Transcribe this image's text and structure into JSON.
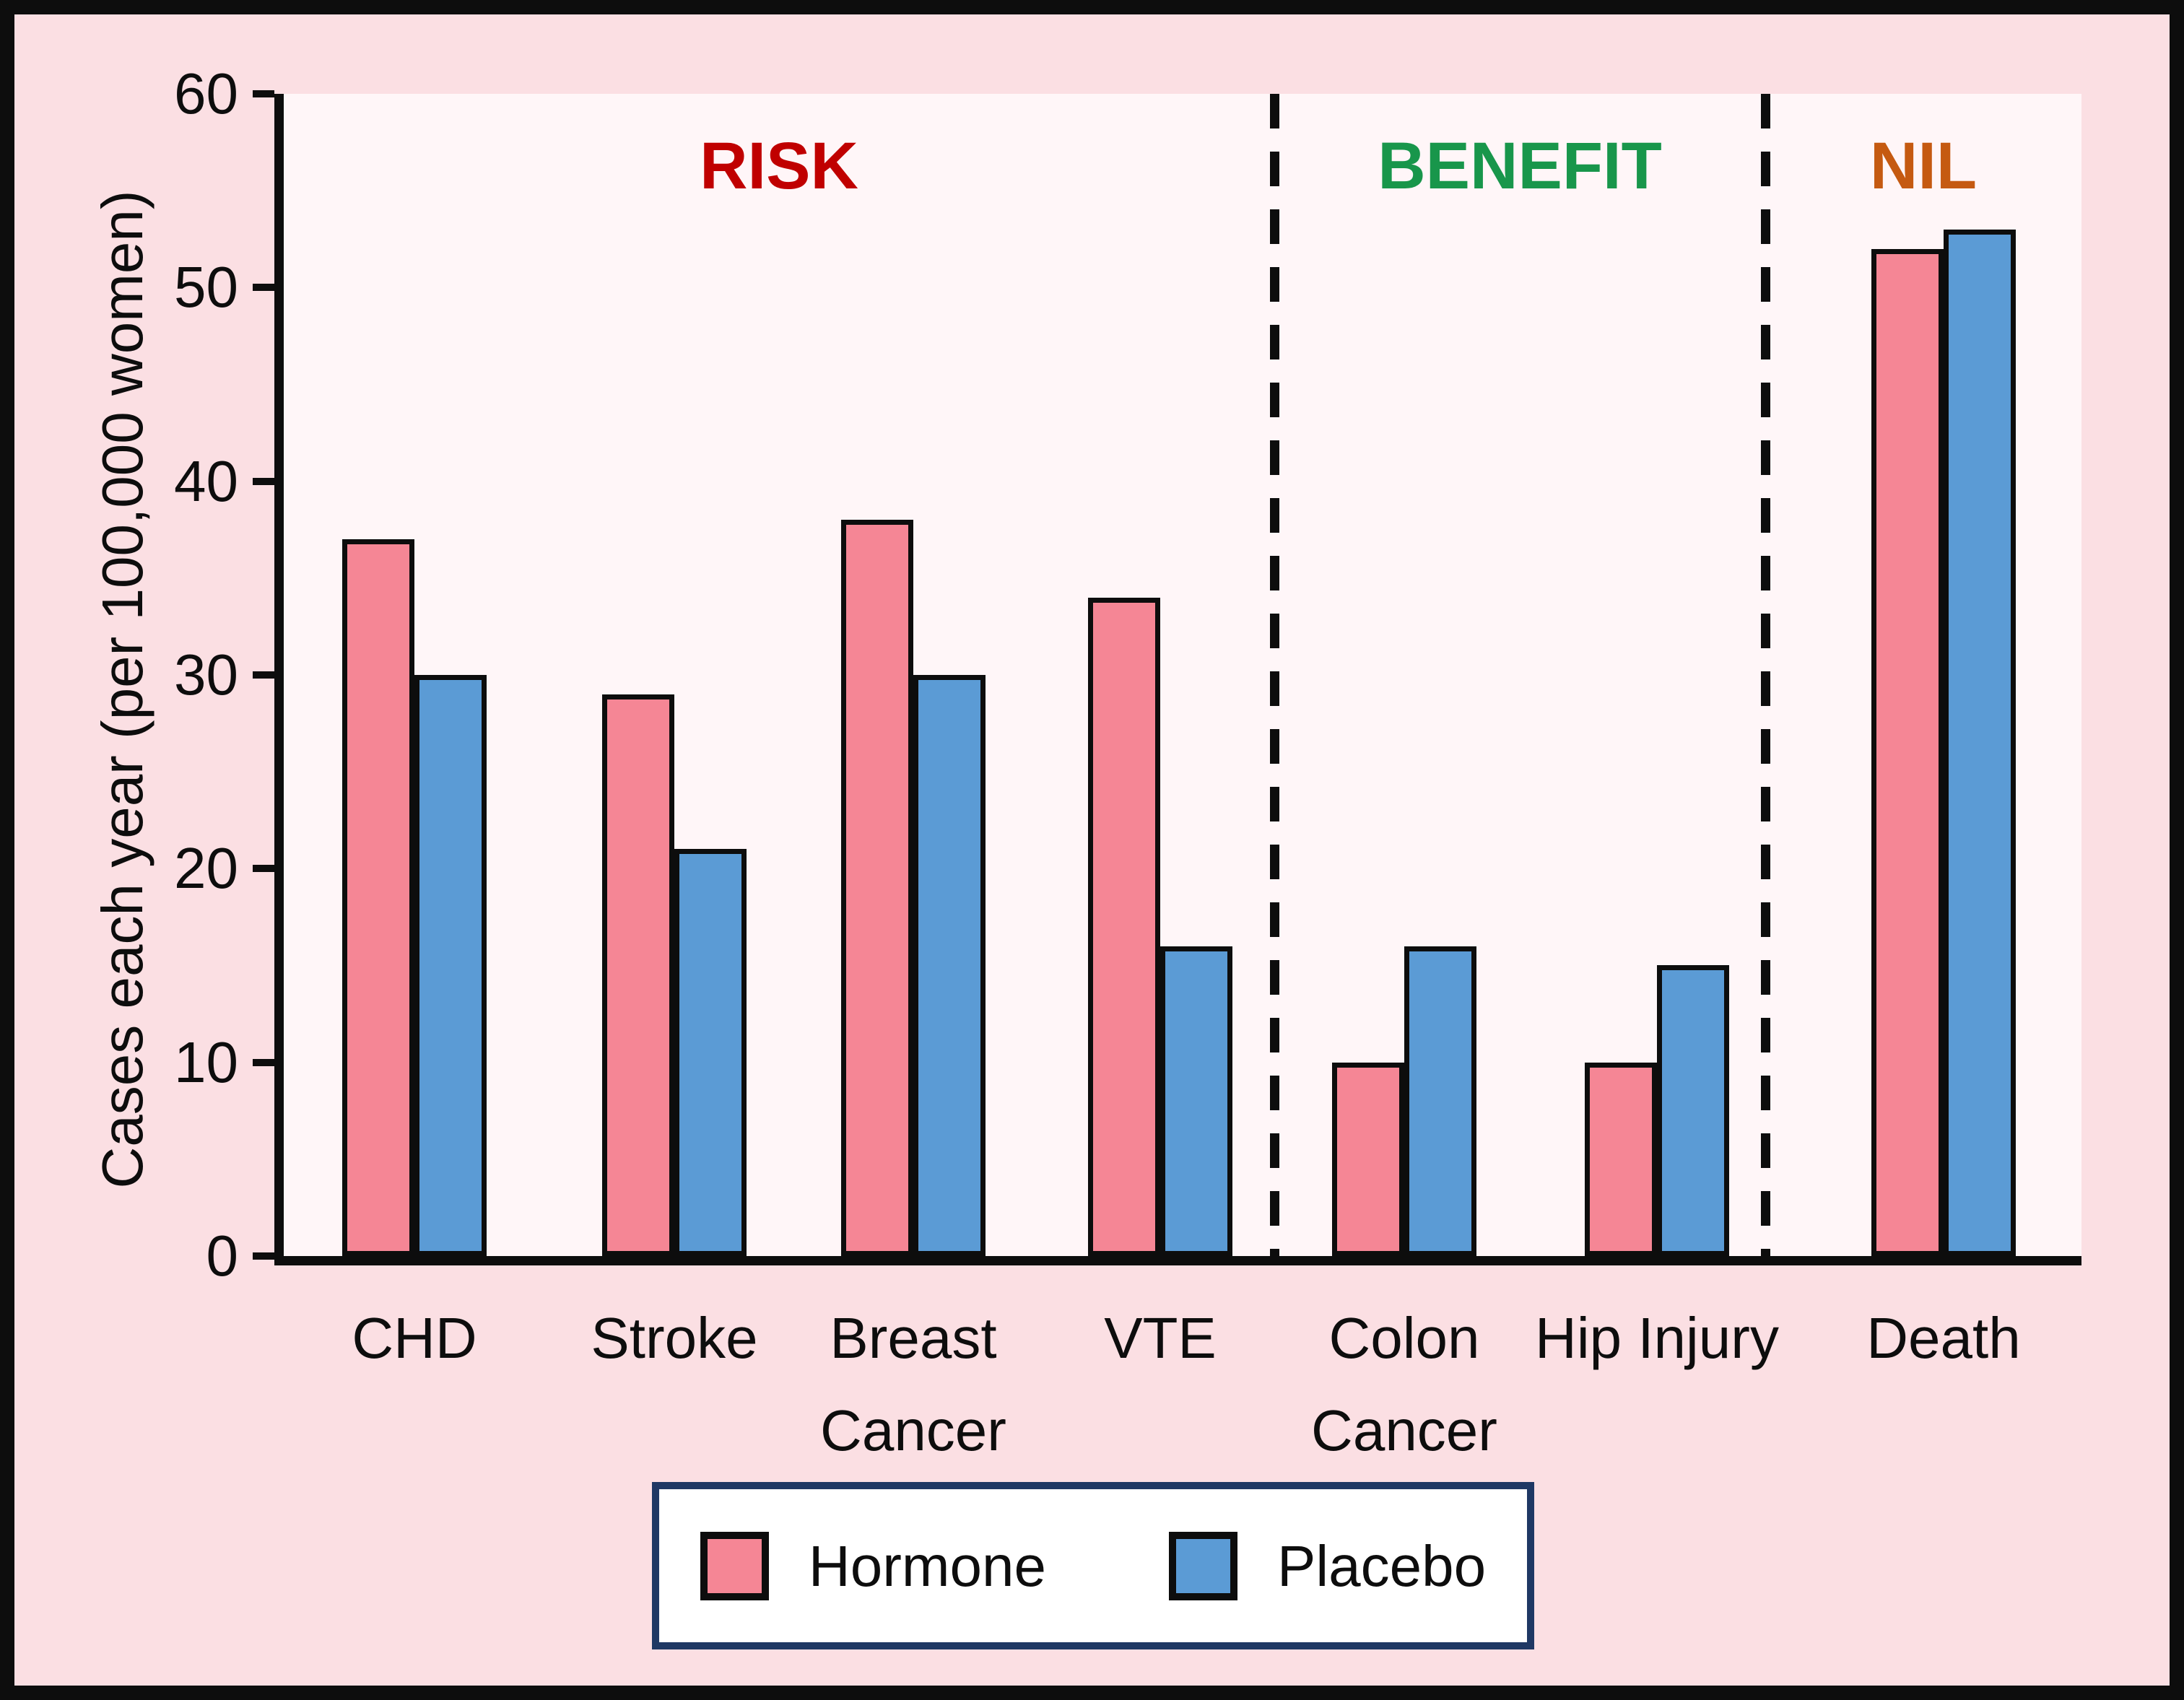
{
  "figure": {
    "background_color": "#fbdfe3",
    "plot_background_color": "#fff6f8",
    "frame_color": "#0d0d0d",
    "axis_color": "#0d0d0d"
  },
  "chart_data": {
    "type": "bar",
    "title": "",
    "ylabel": "Cases each year (per 100,000 women)",
    "xlabel": "",
    "ylim": [
      0,
      60
    ],
    "yticks": [
      0,
      10,
      20,
      30,
      40,
      50,
      60
    ],
    "grid": false,
    "legend_position": "bottom",
    "categories": [
      "CHD",
      "Stroke",
      "Breast Cancer",
      "VTE",
      "Colon Cancer",
      "Hip Injury",
      "Death"
    ],
    "series": [
      {
        "name": "Hormone",
        "color": "#f58695",
        "values": [
          37,
          29,
          38,
          34,
          10,
          10,
          52
        ]
      },
      {
        "name": "Placebo",
        "color": "#5b9bd5",
        "values": [
          30,
          21,
          30,
          16,
          16,
          15,
          53
        ]
      }
    ],
    "sections": [
      {
        "label": "RISK",
        "color": "#c00000",
        "category_start": 0,
        "category_end": 3
      },
      {
        "label": "BENEFIT",
        "color": "#18964b",
        "category_start": 4,
        "category_end": 5
      },
      {
        "label": "NIL",
        "color": "#c55a11",
        "category_start": 6,
        "category_end": 6
      }
    ],
    "separator_style": "dashed"
  },
  "legend": {
    "border_color": "#1f3864",
    "items": [
      {
        "label": "Hormone",
        "color": "#f58695"
      },
      {
        "label": "Placebo",
        "color": "#5b9bd5"
      }
    ]
  }
}
